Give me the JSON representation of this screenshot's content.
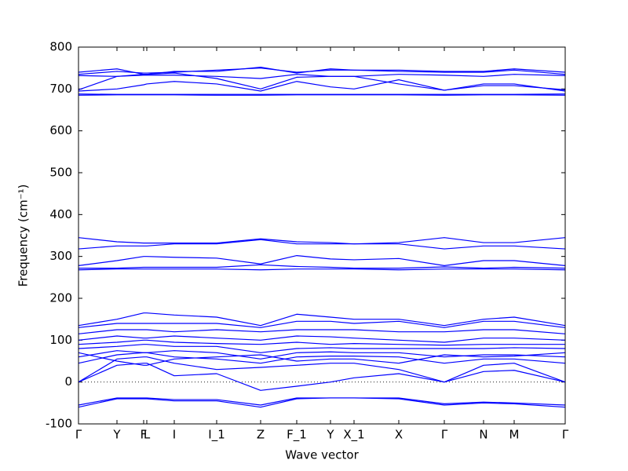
{
  "chart_data": {
    "type": "line",
    "x_label": "Wave vector",
    "y_label": "Frequency (cm⁻¹)",
    "color": "#0000ff",
    "zero_line": 0,
    "xlim": [
      0,
      6.2
    ],
    "ylim": [
      -100,
      800
    ],
    "yticks": [
      -100,
      0,
      100,
      200,
      300,
      400,
      500,
      600,
      700,
      800
    ],
    "xticks": [
      {
        "value": 0,
        "label": "Γ"
      },
      {
        "value": 0.49,
        "label": "Y"
      },
      {
        "value": 0.83,
        "label": "F"
      },
      {
        "value": 0.87,
        "label": "L"
      },
      {
        "value": 1.22,
        "label": "I"
      },
      {
        "value": 1.76,
        "label": "I_1"
      },
      {
        "value": 2.32,
        "label": "Z"
      },
      {
        "value": 2.78,
        "label": "F_1"
      },
      {
        "value": 3.21,
        "label": "Y"
      },
      {
        "value": 3.51,
        "label": "X_1"
      },
      {
        "value": 4.08,
        "label": "X"
      },
      {
        "value": 4.66,
        "label": "Γ"
      },
      {
        "value": 5.16,
        "label": "N"
      },
      {
        "value": 5.55,
        "label": "M"
      },
      {
        "value": 6.2,
        "label": "Γ"
      }
    ],
    "x": [
      0,
      0.49,
      0.83,
      0.87,
      1.22,
      1.76,
      2.32,
      2.78,
      3.21,
      3.51,
      4.08,
      4.66,
      5.16,
      5.55,
      6.2
    ],
    "series": [
      {
        "values": [
          685,
          686,
          686,
          686,
          686,
          685,
          685,
          686,
          686,
          686,
          686,
          685,
          686,
          686,
          685
        ]
      },
      {
        "values": [
          688,
          687,
          687,
          687,
          687,
          687,
          687,
          687,
          687,
          687,
          687,
          687,
          687,
          687,
          688
        ]
      },
      {
        "values": [
          695,
          700,
          710,
          712,
          718,
          712,
          695,
          718,
          705,
          700,
          722,
          697,
          712,
          712,
          695
        ]
      },
      {
        "values": [
          698,
          730,
          735,
          735,
          738,
          725,
          700,
          728,
          730,
          730,
          712,
          697,
          708,
          708,
          698
        ]
      },
      {
        "values": [
          735,
          742,
          738,
          738,
          740,
          745,
          750,
          740,
          745,
          745,
          742,
          740,
          740,
          745,
          735
        ]
      },
      {
        "values": [
          740,
          748,
          735,
          735,
          742,
          742,
          752,
          738,
          748,
          745,
          745,
          742,
          742,
          748,
          740
        ]
      },
      {
        "values": [
          732,
          730,
          733,
          733,
          733,
          730,
          725,
          735,
          730,
          730,
          735,
          733,
          730,
          735,
          732
        ]
      },
      {
        "values": [
          268,
          270,
          270,
          270,
          270,
          270,
          268,
          270,
          270,
          270,
          268,
          270,
          270,
          270,
          268
        ]
      },
      {
        "values": [
          272,
          272,
          274,
          274,
          274,
          274,
          280,
          276,
          274,
          272,
          272,
          275,
          272,
          274,
          272
        ]
      },
      {
        "values": [
          278,
          290,
          300,
          300,
          298,
          296,
          282,
          302,
          294,
          292,
          295,
          278,
          290,
          290,
          278
        ]
      },
      {
        "values": [
          318,
          325,
          325,
          325,
          330,
          330,
          340,
          330,
          330,
          330,
          330,
          318,
          325,
          325,
          318
        ]
      },
      {
        "values": [
          345,
          335,
          332,
          332,
          332,
          332,
          342,
          335,
          333,
          330,
          333,
          345,
          333,
          333,
          345
        ]
      },
      {
        "values": [
          0,
          40,
          45,
          45,
          15,
          20,
          -20,
          -10,
          0,
          10,
          20,
          0,
          25,
          28,
          0
        ]
      },
      {
        "values": [
          0,
          55,
          60,
          60,
          45,
          30,
          35,
          40,
          45,
          45,
          30,
          0,
          40,
          45,
          0
        ]
      },
      {
        "values": [
          -60,
          -40,
          -40,
          -40,
          -45,
          -45,
          -60,
          -40,
          -38,
          -38,
          -40,
          -55,
          -50,
          -52,
          -60
        ]
      },
      {
        "values": [
          -55,
          -38,
          -38,
          -38,
          -42,
          -42,
          -55,
          -38,
          -38,
          -38,
          -38,
          -52,
          -48,
          -50,
          -55
        ]
      },
      {
        "values": [
          45,
          65,
          70,
          70,
          60,
          55,
          45,
          60,
          62,
          62,
          60,
          45,
          55,
          55,
          45
        ]
      },
      {
        "values": [
          60,
          75,
          70,
          70,
          75,
          70,
          55,
          70,
          72,
          70,
          70,
          60,
          65,
          65,
          60
        ]
      },
      {
        "values": [
          80,
          85,
          90,
          90,
          85,
          85,
          70,
          80,
          82,
          80,
          80,
          80,
          80,
          82,
          80
        ]
      },
      {
        "values": [
          100,
          110,
          105,
          105,
          110,
          105,
          100,
          110,
          108,
          105,
          100,
          95,
          105,
          105,
          100
        ]
      },
      {
        "values": [
          115,
          125,
          125,
          125,
          120,
          125,
          120,
          125,
          125,
          125,
          120,
          120,
          125,
          125,
          115
        ]
      },
      {
        "values": [
          135,
          150,
          165,
          165,
          160,
          155,
          135,
          162,
          155,
          150,
          150,
          135,
          150,
          155,
          135
        ]
      },
      {
        "values": [
          130,
          140,
          140,
          140,
          140,
          140,
          130,
          145,
          145,
          140,
          145,
          130,
          145,
          145,
          130
        ]
      },
      {
        "values": [
          90,
          95,
          100,
          100,
          95,
          92,
          90,
          95,
          90,
          92,
          90,
          88,
          90,
          90,
          90
        ]
      },
      {
        "values": [
          70,
          50,
          40,
          40,
          55,
          60,
          65,
          50,
          55,
          55,
          45,
          65,
          60,
          62,
          70
        ]
      }
    ]
  }
}
